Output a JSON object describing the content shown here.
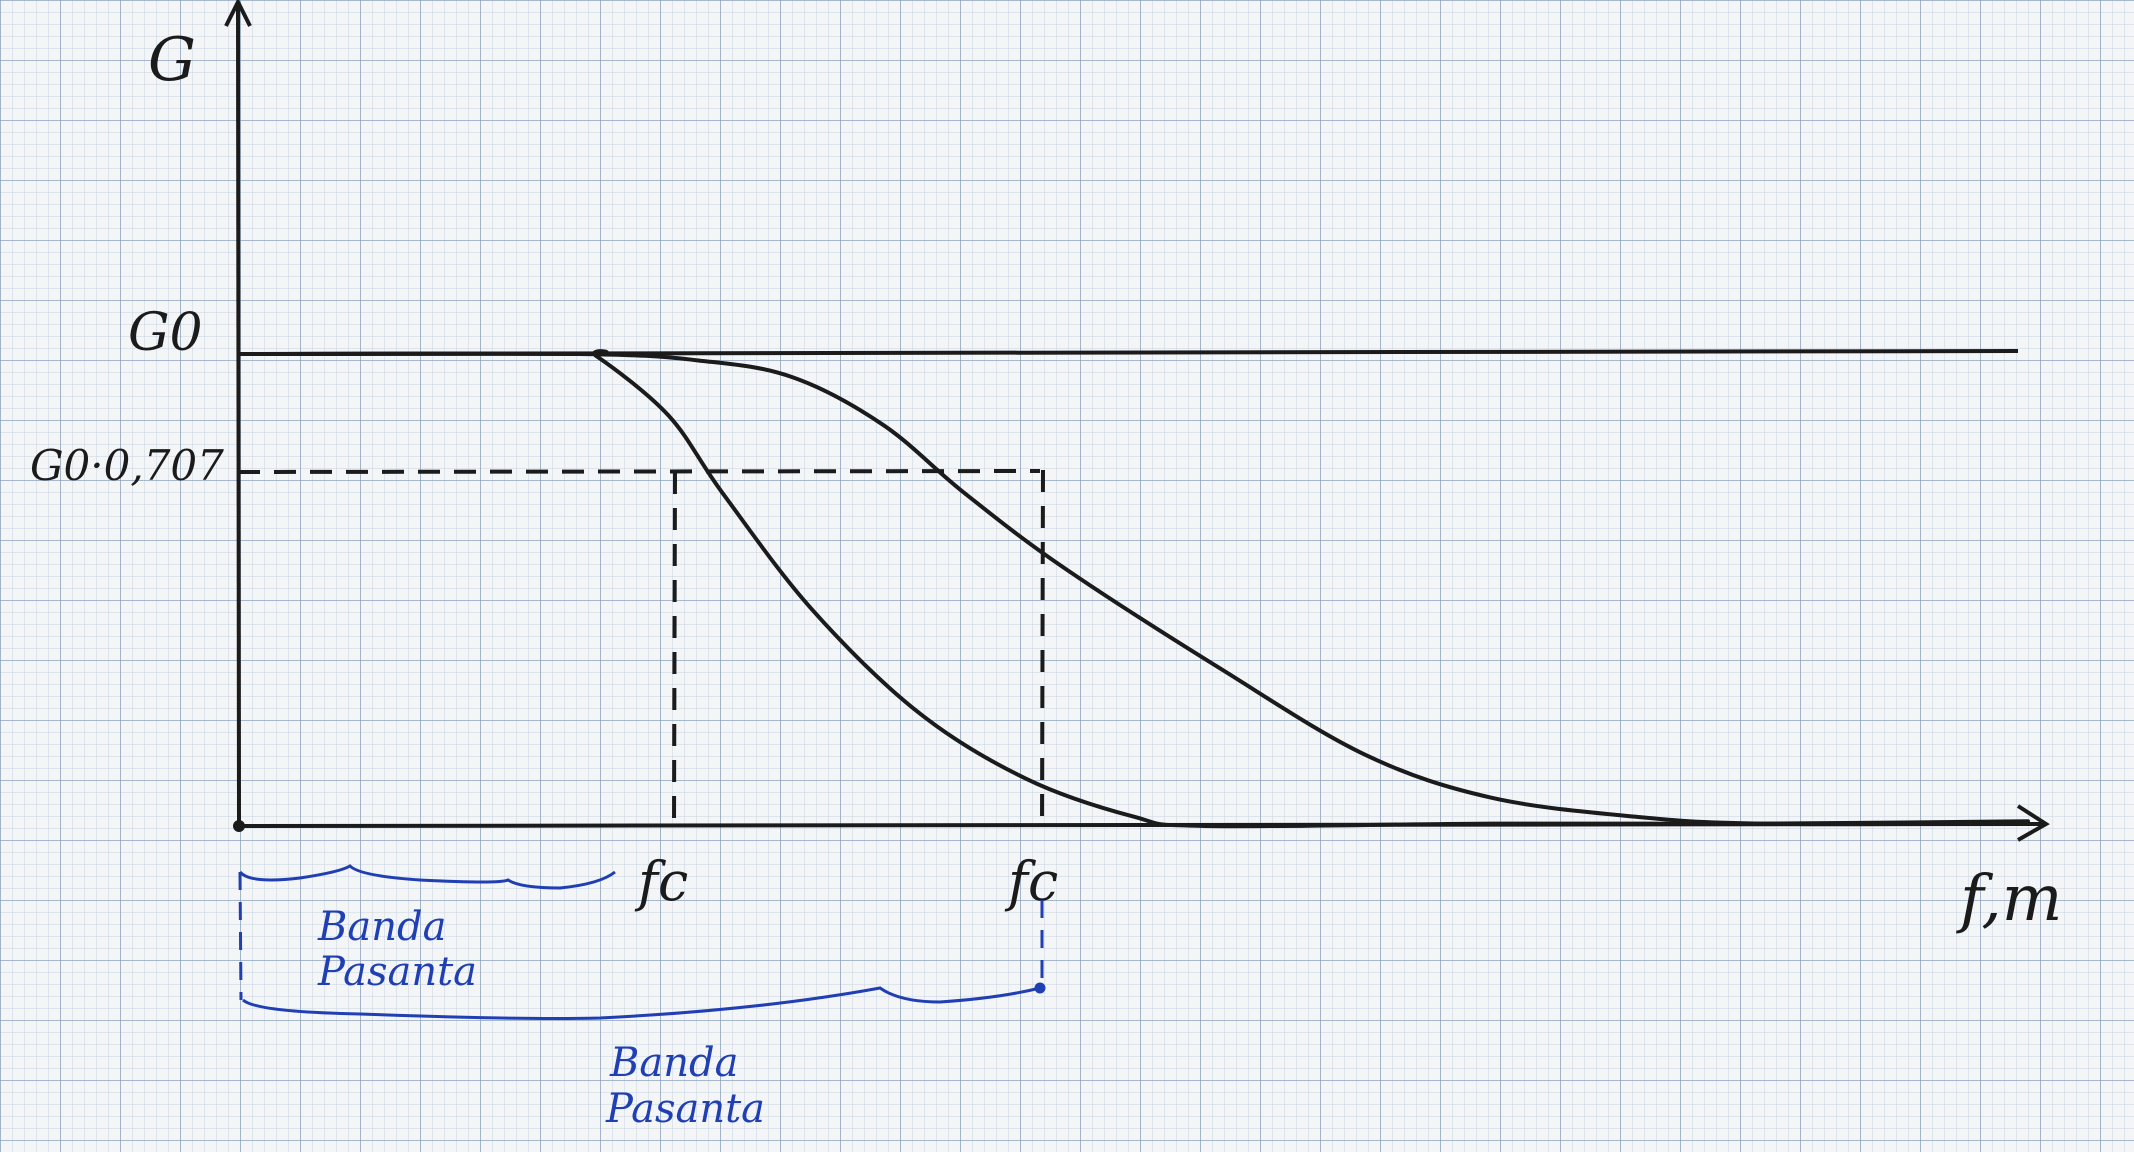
{
  "colors": {
    "paper": "#f4f5f7",
    "grid_minor": "#c7d3e0",
    "grid_major": "#8fa4bd",
    "ink_black": "#1b1b1b",
    "ink_blue": "#1f3fb3"
  },
  "chart_data": {
    "type": "line",
    "hand_drawn": true,
    "grid": true,
    "axes": {
      "y_label": "G",
      "x_label": "f,m",
      "y_ticks": [
        {
          "label": "G0",
          "value": 1.0
        },
        {
          "label": "G0·0,707",
          "value": 0.707
        }
      ],
      "x_ticks": [
        {
          "label": "fc",
          "value": 0.2
        },
        {
          "label": "fc",
          "value": 0.405
        }
      ],
      "xlim": [
        0,
        1.0
      ],
      "ylim": [
        0,
        1.3
      ]
    },
    "series": [
      {
        "points": [
          [
            0,
            1.0
          ],
          [
            0.19,
            1.0
          ],
          [
            0.2,
            0.995
          ],
          [
            0.24,
            0.87
          ],
          [
            0.27,
            0.707
          ],
          [
            0.32,
            0.46
          ],
          [
            0.38,
            0.24
          ],
          [
            0.44,
            0.1
          ],
          [
            0.5,
            0.02
          ],
          [
            0.54,
            0.0
          ],
          [
            0.7,
            0.005
          ],
          [
            0.85,
            0.005
          ],
          [
            1.0,
            0.01
          ]
        ]
      },
      {
        "points": [
          [
            0,
            1.0
          ],
          [
            0.19,
            1.0
          ],
          [
            0.26,
            0.985
          ],
          [
            0.31,
            0.95
          ],
          [
            0.36,
            0.85
          ],
          [
            0.405,
            0.707
          ],
          [
            0.46,
            0.55
          ],
          [
            0.55,
            0.33
          ],
          [
            0.63,
            0.15
          ],
          [
            0.7,
            0.06
          ],
          [
            0.78,
            0.02
          ],
          [
            0.85,
            0.005
          ],
          [
            1.0,
            0.005
          ]
        ]
      }
    ],
    "reference_lines": [
      {
        "kind": "horizontal",
        "y": 1.0
      },
      {
        "kind": "horizontal_dashed",
        "y": 0.707
      },
      {
        "kind": "vertical_dashed",
        "x": 0.27
      },
      {
        "kind": "vertical_dashed",
        "x": 0.405
      }
    ],
    "annotations": [
      {
        "text_line1": "Banda",
        "text_line2": "Pasanta",
        "x_range": [
          0,
          0.2
        ],
        "color": "ink_blue"
      },
      {
        "text_line1": "Banda",
        "text_line2": "Pasanta",
        "x_range": [
          0,
          0.45
        ],
        "color": "ink_blue"
      }
    ]
  }
}
